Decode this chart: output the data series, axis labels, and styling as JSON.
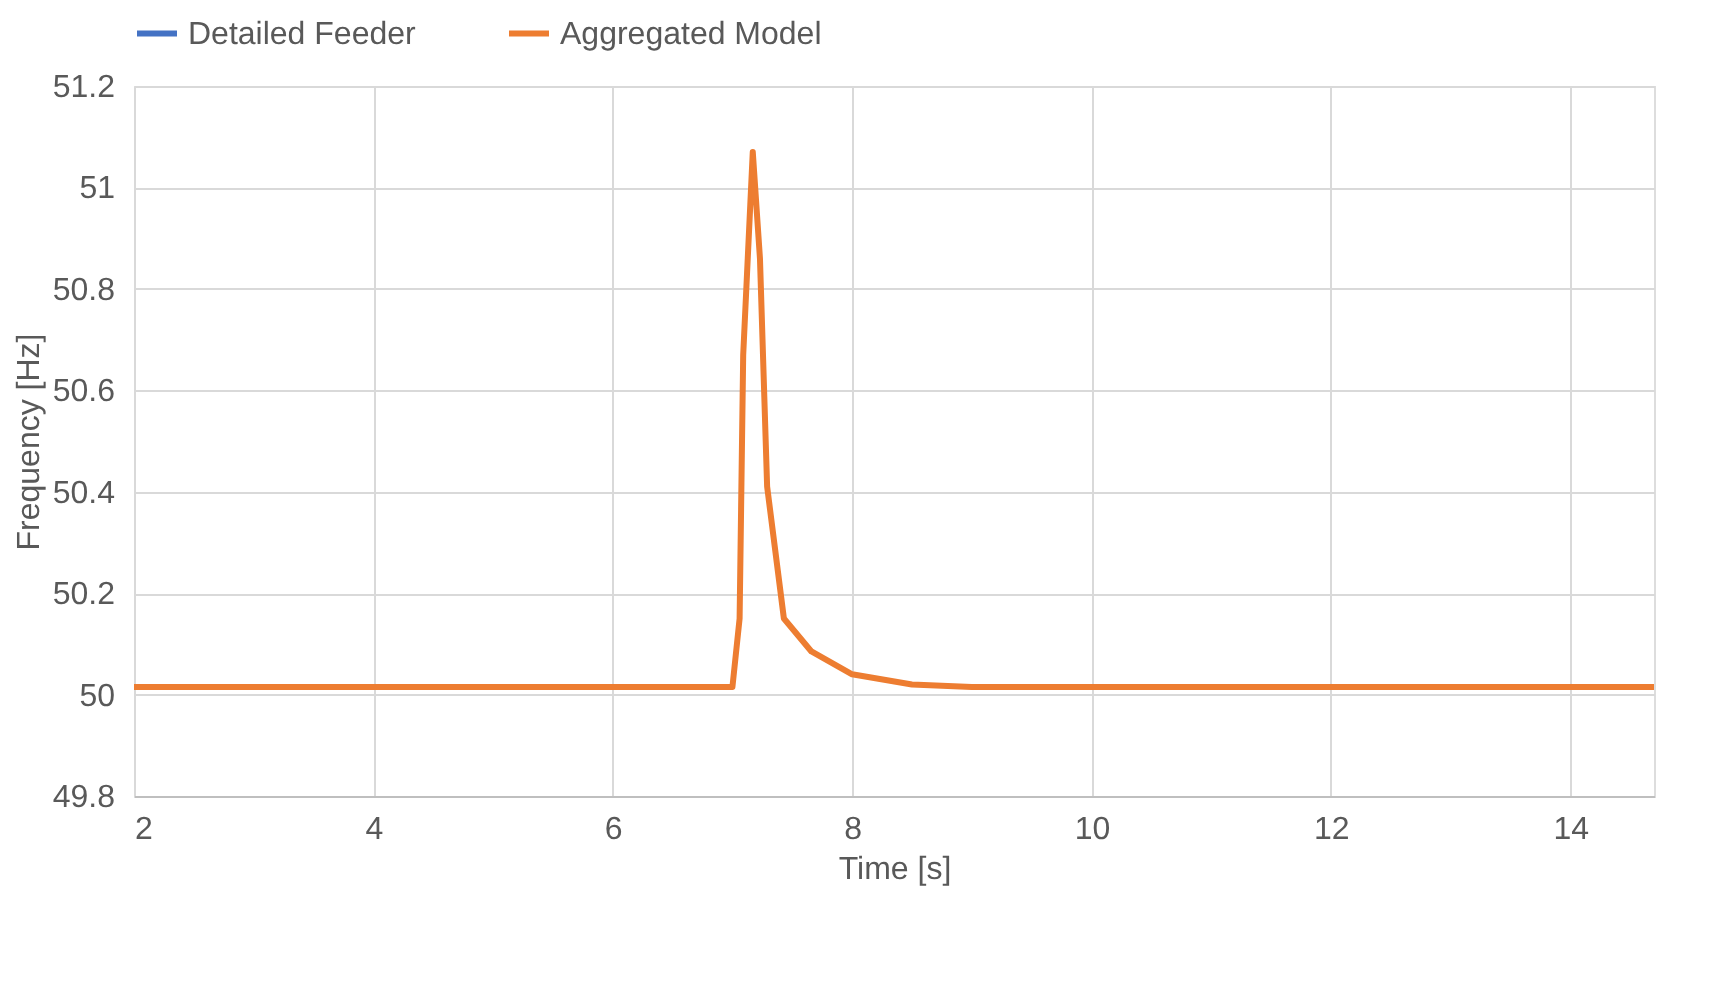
{
  "chart_data": {
    "type": "line",
    "xlabel": "Time [s]",
    "ylabel": "Frequency [Hz]",
    "x": [
      2,
      7.0,
      7.06,
      7.09,
      7.17,
      7.23,
      7.29,
      7.43,
      7.66,
      8.0,
      8.5,
      9.0,
      14.7
    ],
    "series": [
      {
        "name": "Detailed Feeder",
        "color": "#4472c4",
        "values": [
          null,
          null,
          null,
          null,
          null,
          null,
          null,
          null,
          null,
          null,
          null,
          null,
          null
        ]
      },
      {
        "name": "Aggregated Model",
        "color": "#ed7d31",
        "values": [
          50.015,
          50.015,
          50.15,
          50.67,
          51.07,
          50.86,
          50.41,
          50.15,
          50.085,
          50.04,
          50.02,
          50.015,
          50.015
        ]
      }
    ],
    "xlim": [
      2,
      14.7
    ],
    "xticks": [
      2,
      4,
      6,
      8,
      10,
      12,
      14
    ],
    "ylim": [
      49.8,
      51.2
    ],
    "yticks": [
      49.8,
      50,
      50.2,
      50.4,
      50.6,
      50.8,
      51,
      51.2
    ],
    "grid": true,
    "legend": "top",
    "line_style": "solid",
    "marker": "none"
  }
}
